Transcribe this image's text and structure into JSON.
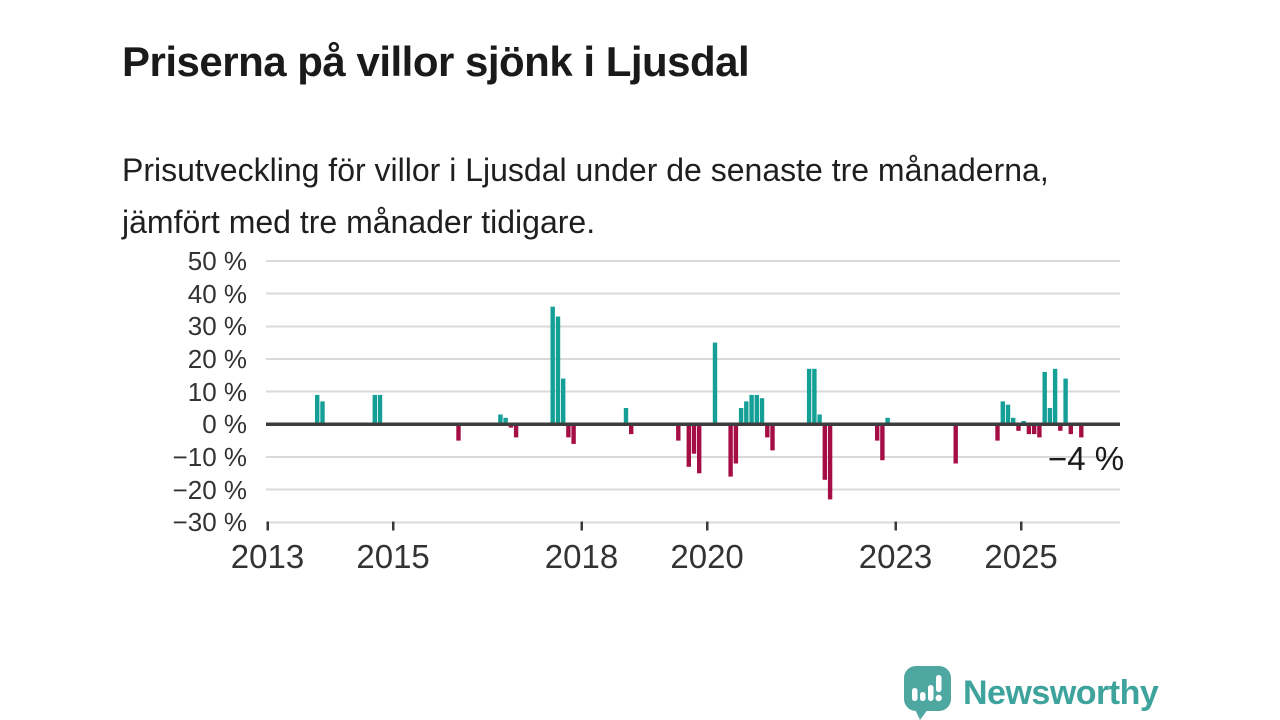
{
  "header": {
    "title": "Priserna på villor sjönk i Ljusdal",
    "subtitle": "Prisutveckling för villor i Ljusdal under de senaste tre månaderna, jämfört med tre månader tidigare."
  },
  "chart_data": {
    "type": "bar",
    "title": "Priserna på villor sjönk i Ljusdal",
    "unit": "%",
    "grid": true,
    "ylim": [
      -30,
      50
    ],
    "y_ticks": [
      {
        "value": 50,
        "label": "50 %"
      },
      {
        "value": 40,
        "label": "40 %"
      },
      {
        "value": 30,
        "label": "30 %"
      },
      {
        "value": 20,
        "label": "20 %"
      },
      {
        "value": 10,
        "label": "10 %"
      },
      {
        "value": 0,
        "label": "0 %"
      },
      {
        "value": -10,
        "label": "−10 %"
      },
      {
        "value": -20,
        "label": "−20 %"
      },
      {
        "value": -30,
        "label": "−30 %"
      }
    ],
    "x_ticks": [
      {
        "value": 2013,
        "label": "2013"
      },
      {
        "value": 2015,
        "label": "2015"
      },
      {
        "value": 2018,
        "label": "2018"
      },
      {
        "value": 2020,
        "label": "2020"
      },
      {
        "value": 2023,
        "label": "2023"
      },
      {
        "value": 2025,
        "label": "2025"
      }
    ],
    "series": [
      {
        "m": "2013-10",
        "v": 9
      },
      {
        "m": "2013-11",
        "v": 7
      },
      {
        "m": "2014-09",
        "v": 9
      },
      {
        "m": "2014-10",
        "v": 9
      },
      {
        "m": "2016-01",
        "v": -5
      },
      {
        "m": "2016-09",
        "v": 3
      },
      {
        "m": "2016-10",
        "v": 2
      },
      {
        "m": "2016-11",
        "v": -1
      },
      {
        "m": "2016-12",
        "v": -4
      },
      {
        "m": "2017-07",
        "v": 36
      },
      {
        "m": "2017-08",
        "v": 33
      },
      {
        "m": "2017-09",
        "v": 14
      },
      {
        "m": "2017-10",
        "v": -4
      },
      {
        "m": "2017-11",
        "v": -6
      },
      {
        "m": "2018-09",
        "v": 5
      },
      {
        "m": "2018-10",
        "v": -3
      },
      {
        "m": "2019-07",
        "v": -5
      },
      {
        "m": "2019-09",
        "v": -13
      },
      {
        "m": "2019-10",
        "v": -9
      },
      {
        "m": "2019-11",
        "v": -15
      },
      {
        "m": "2020-02",
        "v": 25
      },
      {
        "m": "2020-05",
        "v": -16
      },
      {
        "m": "2020-06",
        "v": -12
      },
      {
        "m": "2020-07",
        "v": 5
      },
      {
        "m": "2020-08",
        "v": 7
      },
      {
        "m": "2020-09",
        "v": 9
      },
      {
        "m": "2020-10",
        "v": 9
      },
      {
        "m": "2020-11",
        "v": 8
      },
      {
        "m": "2020-12",
        "v": -4
      },
      {
        "m": "2021-01",
        "v": -8
      },
      {
        "m": "2021-08",
        "v": 17
      },
      {
        "m": "2021-09",
        "v": 17
      },
      {
        "m": "2021-10",
        "v": 3
      },
      {
        "m": "2021-11",
        "v": -17
      },
      {
        "m": "2021-12",
        "v": -23
      },
      {
        "m": "2022-09",
        "v": -5
      },
      {
        "m": "2022-10",
        "v": -11
      },
      {
        "m": "2022-11",
        "v": 2
      },
      {
        "m": "2023-12",
        "v": -12
      },
      {
        "m": "2024-08",
        "v": -5
      },
      {
        "m": "2024-09",
        "v": 7
      },
      {
        "m": "2024-10",
        "v": 6
      },
      {
        "m": "2024-11",
        "v": 2
      },
      {
        "m": "2024-12",
        "v": -2
      },
      {
        "m": "2025-01",
        "v": 1
      },
      {
        "m": "2025-02",
        "v": -3
      },
      {
        "m": "2025-03",
        "v": -3
      },
      {
        "m": "2025-04",
        "v": -4
      },
      {
        "m": "2025-05",
        "v": 16
      },
      {
        "m": "2025-06",
        "v": 5
      },
      {
        "m": "2025-07",
        "v": 17
      },
      {
        "m": "2025-08",
        "v": -2
      },
      {
        "m": "2025-09",
        "v": 14
      },
      {
        "m": "2025-10",
        "v": -3
      },
      {
        "m": "2025-12",
        "v": -4
      }
    ],
    "annotation": {
      "label": "−4 %"
    },
    "colors": {
      "positive": "#14a096",
      "negative": "#a50d45",
      "gridline": "#dadada",
      "zero_line": "#3d3d3d",
      "tick": "#3a3a3a"
    }
  },
  "footer": {
    "brand": "Newsworthy",
    "brand_color": "#3ea39c",
    "icon_color": "#4fa7a1"
  }
}
